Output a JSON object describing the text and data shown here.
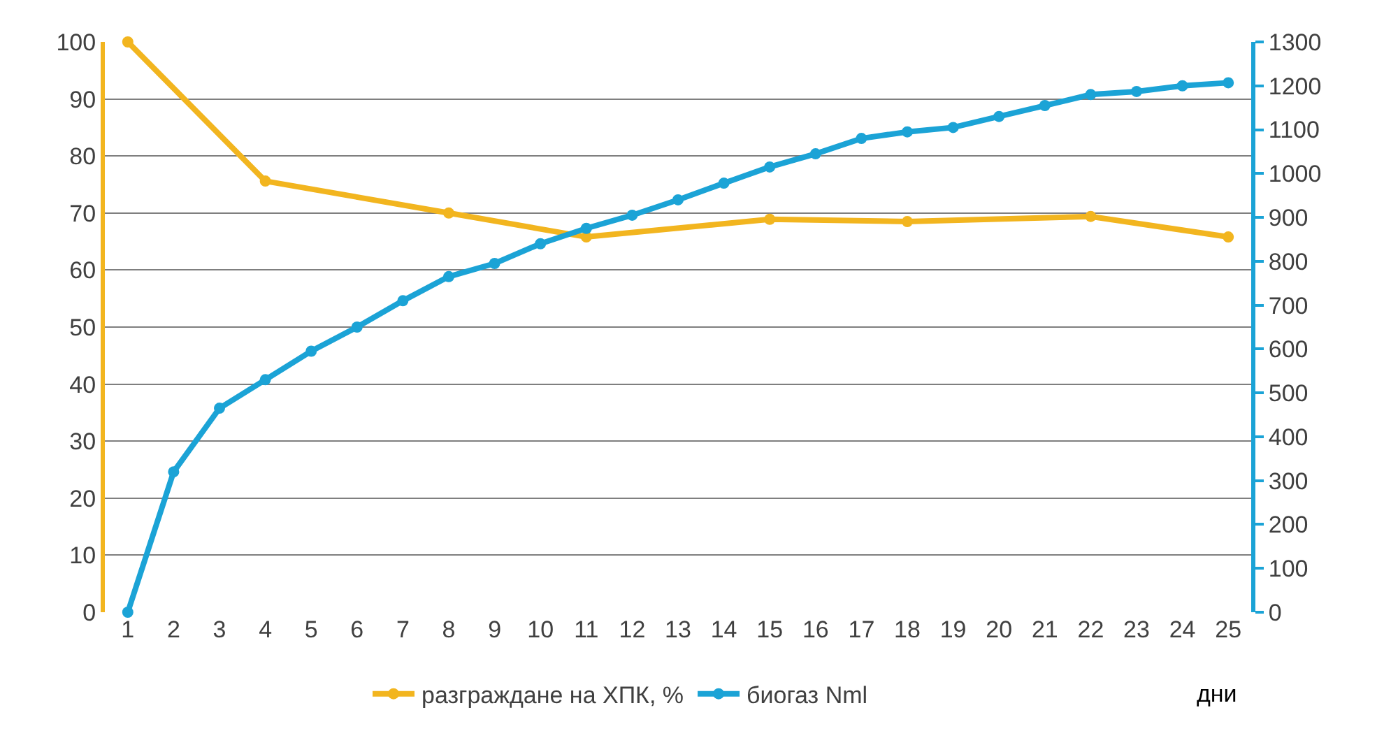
{
  "chart_data": {
    "type": "line",
    "xlabel": "дни",
    "x": [
      1,
      2,
      3,
      4,
      5,
      6,
      7,
      8,
      9,
      10,
      11,
      12,
      13,
      14,
      15,
      16,
      17,
      18,
      19,
      20,
      21,
      22,
      23,
      24,
      25
    ],
    "xlim": [
      0.5,
      25.5
    ],
    "xticks": [
      1,
      2,
      3,
      4,
      5,
      6,
      7,
      8,
      9,
      10,
      11,
      12,
      13,
      14,
      15,
      16,
      17,
      18,
      19,
      20,
      21,
      22,
      23,
      24,
      25
    ],
    "ylim": [
      0,
      100
    ],
    "yticks": [
      0,
      10,
      20,
      30,
      40,
      50,
      60,
      70,
      80,
      90,
      100
    ],
    "y2lim": [
      0,
      1300
    ],
    "y2ticks": [
      0,
      100,
      200,
      300,
      400,
      500,
      600,
      700,
      800,
      900,
      1000,
      1100,
      1200,
      1300
    ],
    "grid": "y",
    "legend": "bottom",
    "marker": "circle",
    "line_style": "solid",
    "series": [
      {
        "name": "разграждане на ХПК, %",
        "color": "#f2b51f",
        "x": [
          1,
          4,
          8,
          11,
          15,
          18,
          22,
          25
        ],
        "values": [
          100,
          75.6,
          70,
          65.8,
          68.9,
          68.5,
          69.4,
          65.8
        ]
      },
      {
        "name": "биогаз Nml",
        "color": "#1ba3d6",
        "axis": "y2",
        "values": [
          0,
          320,
          465,
          530,
          595,
          650,
          710,
          765,
          795,
          840,
          875,
          905,
          940,
          978,
          1015,
          1045,
          1080,
          1095,
          1105,
          1130,
          1155,
          1180,
          1187,
          1200,
          1207
        ]
      }
    ]
  }
}
